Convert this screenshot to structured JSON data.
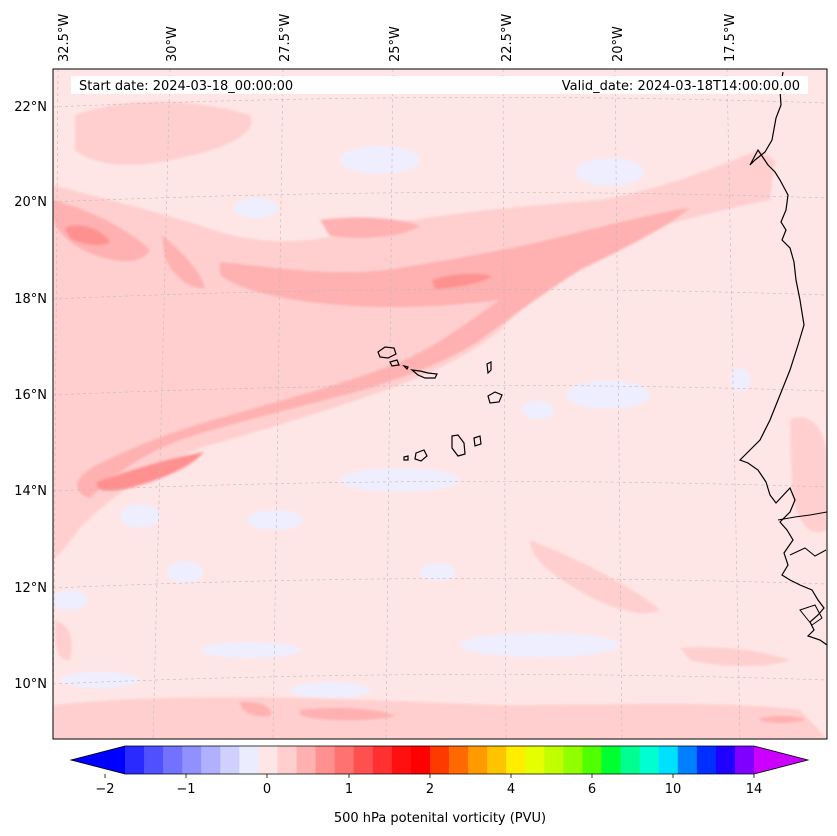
{
  "map": {
    "title_left": "Start date: 2024-03-18_00:00:00",
    "title_right": "Valid_date: 2024-03-18T14:00:00.00",
    "region": "Eastern tropical North Atlantic, Cape Verde and West African coast",
    "lon_labels": [
      "32.5°W",
      "30°W",
      "27.5°W",
      "25°W",
      "22.5°W",
      "20°W",
      "17.5°W"
    ],
    "lat_labels": [
      "22°N",
      "20°N",
      "18°N",
      "16°N",
      "14°N",
      "12°N",
      "10°N"
    ],
    "field": "500 hPa potential vorticity"
  },
  "colorbar": {
    "label": "500 hPa potenital vorticity (PVU)",
    "tick_labels": [
      "−2",
      "−1",
      "0",
      "1",
      "2",
      "4",
      "6",
      "10",
      "14"
    ],
    "colors": [
      "#0000ff",
      "#2a2aff",
      "#5050ff",
      "#7272ff",
      "#9090ff",
      "#b0b0ff",
      "#d0d0ff",
      "#ececff",
      "#ffe6e6",
      "#ffcfcf",
      "#ffb0b0",
      "#ff9090",
      "#ff7272",
      "#ff5050",
      "#ff3030",
      "#ff1010",
      "#ff0000",
      "#ff3a00",
      "#ff6a00",
      "#ff9a00",
      "#ffc400",
      "#ffee00",
      "#e6ff00",
      "#c0ff00",
      "#90ff00",
      "#50ff00",
      "#00ff30",
      "#00ff90",
      "#00ffd0",
      "#00e0ff",
      "#0080ff",
      "#0030ff",
      "#2000ff",
      "#8000ff",
      "#cc00ff"
    ]
  }
}
